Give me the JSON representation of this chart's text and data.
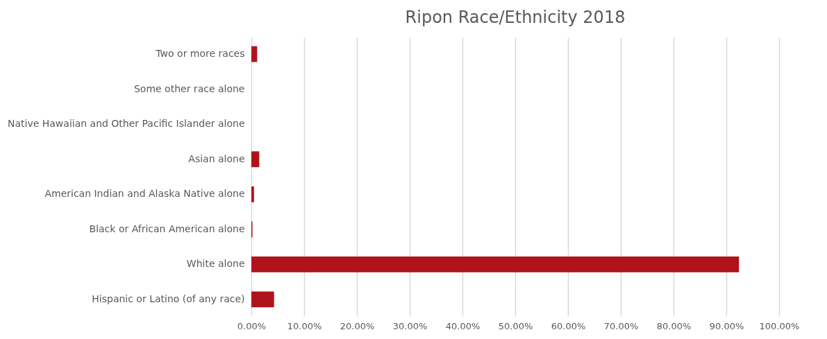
{
  "chart_data": {
    "type": "bar",
    "orientation": "horizontal",
    "title": "Ripon Race/Ethnicity 2018",
    "categories": [
      "Two or more races",
      "Some other race alone",
      "Native Hawaiian and Other Pacific Islander alone",
      "Asian alone",
      "American Indian and Alaska Native alone",
      "Black or African American alone",
      "White alone",
      "Hispanic or Latino (of any race)"
    ],
    "values": [
      1.1,
      0,
      0,
      1.5,
      0.5,
      0.2,
      92.4,
      4.3
    ],
    "color": "#b0121b",
    "xlim": [
      0,
      100
    ],
    "xticks": [
      {
        "value": 0,
        "label": "0.00%"
      },
      {
        "value": 10,
        "label": "10.00%"
      },
      {
        "value": 20,
        "label": "20.00%"
      },
      {
        "value": 30,
        "label": "30.00%"
      },
      {
        "value": 40,
        "label": "40.00%"
      },
      {
        "value": 50,
        "label": "50.00%"
      },
      {
        "value": 60,
        "label": "60.00%"
      },
      {
        "value": 70,
        "label": "70.00%"
      },
      {
        "value": 80,
        "label": "80.00%"
      },
      {
        "value": 90,
        "label": "90.00%"
      },
      {
        "value": 100,
        "label": "100.00%"
      }
    ],
    "grid": "x"
  }
}
